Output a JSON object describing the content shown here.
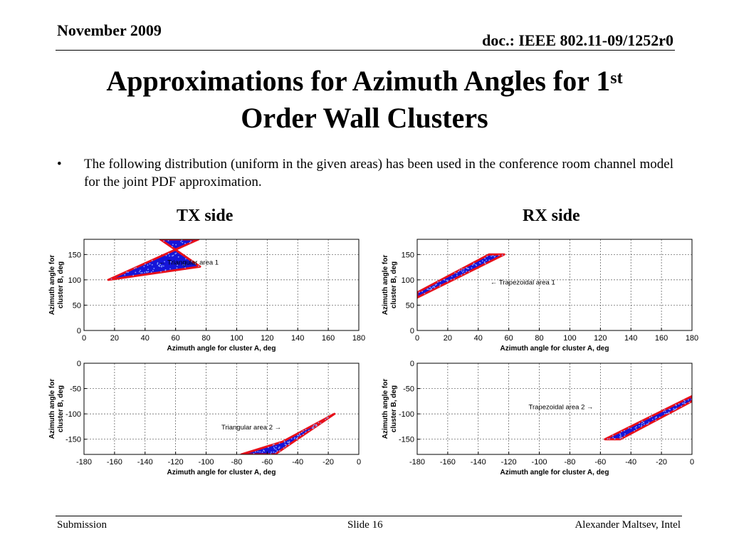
{
  "header": {
    "date": "November 2009",
    "doc": "doc.: IEEE 802.11-09/1252r0"
  },
  "title": {
    "line1": "Approximations for Azimuth Angles for 1",
    "sup": "st",
    "line2": "Order Wall Clusters"
  },
  "bullet": {
    "mark": "•",
    "text": "The following distribution (uniform in the given areas) has been used in the conference room channel model for the joint PDF approximation."
  },
  "labels": {
    "tx": "TX side",
    "rx": "RX side"
  },
  "footer": {
    "left": "Submission",
    "center": "Slide 16",
    "right": "Alexander Maltsev, Intel"
  },
  "colors": {
    "fill": "#1515d8",
    "outline": "#e8101a",
    "points": "#8fa6ff"
  },
  "chart_data": [
    {
      "id": "tx-top",
      "type": "area",
      "xlabel": "Azimuth angle for cluster A, deg",
      "ylabel": "Azimuth angle for cluster B, deg",
      "xlim": [
        0,
        180
      ],
      "ylim": [
        0,
        180
      ],
      "xticks": [
        0,
        20,
        40,
        60,
        80,
        100,
        120,
        140,
        160,
        180
      ],
      "yticks": [
        0,
        50,
        100,
        150
      ],
      "grid": true,
      "region": [
        [
          16,
          100
        ],
        [
          75,
          180
        ],
        [
          50,
          180
        ],
        [
          76,
          126
        ]
      ],
      "annotation": {
        "text": "← Triangular area 1",
        "x": 49,
        "y": 130
      }
    },
    {
      "id": "tx-bottom",
      "type": "area",
      "xlabel": "Azimuth angle for cluster A, deg",
      "ylabel": "Azimuth angle for cluster B, deg",
      "xlim": [
        -180,
        0
      ],
      "ylim": [
        -180,
        0
      ],
      "xticks": [
        -180,
        -160,
        -140,
        -120,
        -100,
        -80,
        -60,
        -40,
        -20,
        0
      ],
      "yticks": [
        0,
        -50,
        -100,
        -150
      ],
      "grid": true,
      "region": [
        [
          -16,
          -100
        ],
        [
          -55,
          -180
        ],
        [
          -77,
          -180
        ],
        [
          -50,
          -155
        ]
      ],
      "annotation": {
        "text": "Triangular area 2 →",
        "x": -90,
        "y": -131
      }
    },
    {
      "id": "rx-top",
      "type": "area",
      "xlabel": "Azimuth angle for cluster A, deg",
      "ylabel": "Azimuth angle for cluster B, deg",
      "xlim": [
        0,
        180
      ],
      "ylim": [
        0,
        180
      ],
      "xticks": [
        0,
        20,
        40,
        60,
        80,
        100,
        120,
        140,
        160,
        180
      ],
      "yticks": [
        0,
        50,
        100,
        150
      ],
      "grid": true,
      "region": [
        [
          0,
          65
        ],
        [
          0,
          75
        ],
        [
          47,
          150
        ],
        [
          57,
          150
        ]
      ],
      "annotation": {
        "text": "← Trapezoidal area 1",
        "x": 48,
        "y": 91
      }
    },
    {
      "id": "rx-bottom",
      "type": "area",
      "xlabel": "Azimuth angle for cluster A, deg",
      "ylabel": "Azimuth angle for cluster B, deg",
      "xlim": [
        -180,
        0
      ],
      "ylim": [
        -180,
        0
      ],
      "xticks": [
        -180,
        -160,
        -140,
        -120,
        -100,
        -80,
        -60,
        -40,
        -20,
        0
      ],
      "yticks": [
        0,
        -50,
        -100,
        -150
      ],
      "grid": true,
      "region": [
        [
          -57,
          -150
        ],
        [
          -47,
          -150
        ],
        [
          0,
          -75
        ],
        [
          0,
          -65
        ]
      ],
      "annotation": {
        "text": "Trapezoidal area 2 →",
        "x": -107,
        "y": -91
      }
    }
  ]
}
